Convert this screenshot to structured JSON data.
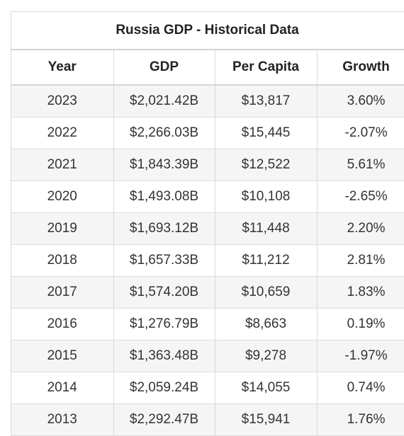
{
  "table": {
    "title": "Russia GDP - Historical Data",
    "headers": [
      "Year",
      "GDP",
      "Per Capita",
      "Growth"
    ],
    "rows": [
      [
        "2023",
        "$2,021.42B",
        "$13,817",
        "3.60%"
      ],
      [
        "2022",
        "$2,266.03B",
        "$15,445",
        "-2.07%"
      ],
      [
        "2021",
        "$1,843.39B",
        "$12,522",
        "5.61%"
      ],
      [
        "2020",
        "$1,493.08B",
        "$10,108",
        "-2.65%"
      ],
      [
        "2019",
        "$1,693.12B",
        "$11,448",
        "2.20%"
      ],
      [
        "2018",
        "$1,657.33B",
        "$11,212",
        "2.81%"
      ],
      [
        "2017",
        "$1,574.20B",
        "$10,659",
        "1.83%"
      ],
      [
        "2016",
        "$1,276.79B",
        "$8,663",
        "0.19%"
      ],
      [
        "2015",
        "$1,363.48B",
        "$9,278",
        "-1.97%"
      ],
      [
        "2014",
        "$2,059.24B",
        "$14,055",
        "0.74%"
      ],
      [
        "2013",
        "$2,292.47B",
        "$15,941",
        "1.76%"
      ]
    ]
  }
}
